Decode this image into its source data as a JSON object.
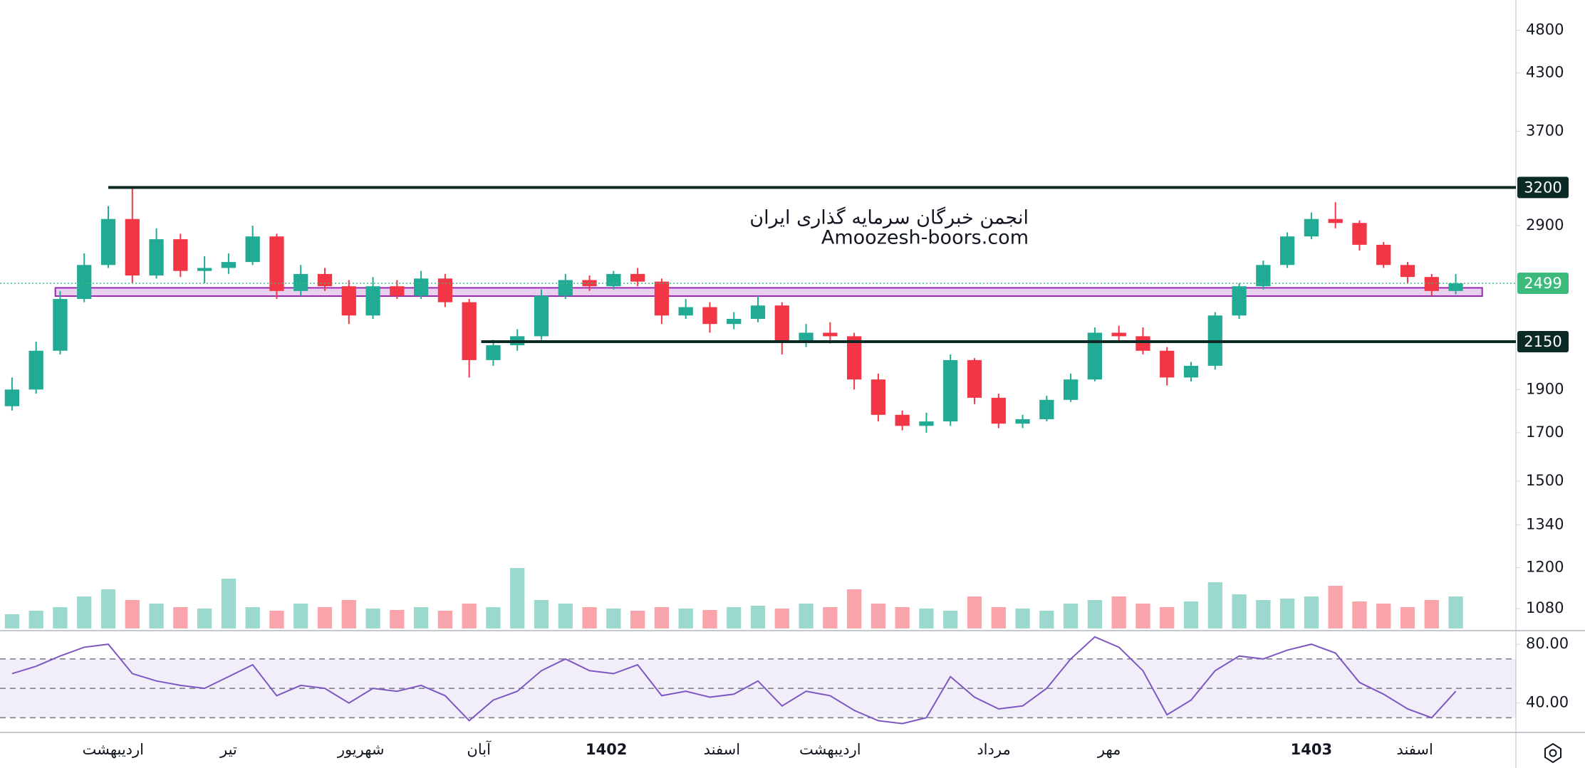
{
  "chart_data": [
    {
      "type": "candlestick",
      "title": "انجمن خبرگان سرمایه گذاری ایران",
      "subtitle": "Amoozesh-boors.com",
      "log_scale": true,
      "xlim": [
        -0.5,
        62.5
      ],
      "xticks": [
        {
          "value": 4.2,
          "label": "اردیبهشت"
        },
        {
          "value": 9,
          "label": "تیر"
        },
        {
          "value": 14.5,
          "label": "شهریور"
        },
        {
          "value": 19.4,
          "label": "آبان"
        },
        {
          "value": 24.7,
          "label": "1402"
        },
        {
          "value": 29.5,
          "label": "اسفند"
        },
        {
          "value": 34,
          "label": "اردیبهشت"
        },
        {
          "value": 40.8,
          "label": "مرداد"
        },
        {
          "value": 45.6,
          "label": "مهر"
        },
        {
          "value": 54,
          "label": "1403"
        },
        {
          "value": 58.3,
          "label": "اسفند"
        }
      ],
      "ylim": [
        1022,
        5190
      ],
      "yticks": [
        4800,
        4300,
        3700,
        2900,
        1900,
        1700,
        1500,
        1340,
        1200,
        1080
      ],
      "up_color": "#22ab94",
      "down_color": "#f23645",
      "open": [
        1820,
        1900,
        2100,
        2400,
        2620,
        2950,
        2550,
        2800,
        2580,
        2600,
        2640,
        2820,
        2450,
        2560,
        2480,
        2300,
        2480,
        2420,
        2530,
        2380,
        2050,
        2130,
        2180,
        2420,
        2520,
        2480,
        2560,
        2510,
        2300,
        2350,
        2250,
        2280,
        2360,
        2150,
        2200,
        2180,
        1950,
        1780,
        1730,
        1750,
        2050,
        1860,
        1740,
        1760,
        1850,
        1950,
        2200,
        2180,
        2100,
        1960,
        2020,
        2300,
        2480,
        2620,
        2820,
        2950,
        2920,
        2760,
        2620,
        2540,
        2450
      ],
      "high": [
        1960,
        2150,
        2450,
        2700,
        3050,
        3210,
        2880,
        2840,
        2680,
        2700,
        2900,
        2840,
        2620,
        2600,
        2520,
        2540,
        2520,
        2580,
        2560,
        2400,
        2160,
        2220,
        2460,
        2560,
        2550,
        2580,
        2600,
        2530,
        2400,
        2380,
        2320,
        2420,
        2380,
        2250,
        2260,
        2200,
        1980,
        1800,
        1790,
        2080,
        2060,
        1880,
        1780,
        1870,
        1980,
        2230,
        2240,
        2230,
        2120,
        2040,
        2320,
        2500,
        2650,
        2850,
        3000,
        3080,
        2940,
        2780,
        2640,
        2560,
        2560
      ],
      "low": [
        1800,
        1880,
        2080,
        2380,
        2600,
        2500,
        2530,
        2540,
        2500,
        2560,
        2620,
        2400,
        2420,
        2450,
        2250,
        2280,
        2400,
        2400,
        2350,
        1960,
        2020,
        2100,
        2160,
        2400,
        2450,
        2460,
        2480,
        2250,
        2280,
        2200,
        2220,
        2260,
        2080,
        2120,
        2140,
        1900,
        1750,
        1710,
        1700,
        1730,
        1830,
        1720,
        1720,
        1750,
        1840,
        1940,
        2150,
        2080,
        1920,
        1940,
        2000,
        2280,
        2460,
        2600,
        2800,
        2880,
        2720,
        2600,
        2500,
        2420,
        2430
      ],
      "close": [
        1900,
        2100,
        2400,
        2620,
        2950,
        2550,
        2800,
        2580,
        2600,
        2640,
        2820,
        2450,
        2560,
        2480,
        2300,
        2480,
        2420,
        2530,
        2380,
        2050,
        2130,
        2180,
        2420,
        2520,
        2480,
        2560,
        2510,
        2300,
        2350,
        2250,
        2280,
        2360,
        2150,
        2200,
        2180,
        1950,
        1780,
        1730,
        1750,
        2050,
        1860,
        1740,
        1760,
        1850,
        1950,
        2200,
        2180,
        2100,
        1960,
        2020,
        2300,
        2480,
        2620,
        2820,
        2950,
        2920,
        2760,
        2620,
        2540,
        2450,
        2499
      ],
      "volume": [
        20,
        25,
        30,
        45,
        55,
        40,
        35,
        30,
        28,
        70,
        30,
        25,
        35,
        30,
        40,
        28,
        26,
        30,
        25,
        35,
        30,
        85,
        40,
        35,
        30,
        28,
        25,
        30,
        28,
        26,
        30,
        32,
        28,
        35,
        30,
        55,
        35,
        30,
        28,
        25,
        45,
        30,
        28,
        25,
        35,
        40,
        45,
        35,
        30,
        38,
        65,
        48,
        40,
        42,
        45,
        60,
        38,
        35,
        30,
        40,
        45
      ],
      "levels": [
        {
          "value": 3200,
          "x_start": 4,
          "color": "#0b2a26"
        },
        {
          "value": 2150,
          "x_start": 19.5,
          "color": "#0b2a26"
        }
      ],
      "zone": {
        "range": [
          2418,
          2470
        ],
        "x_range": [
          1.8,
          61.1
        ],
        "color": "#9c27b0"
      },
      "last_color": "#3cba7c"
    },
    {
      "type": "line",
      "color": "#7e57c2",
      "ylim": [
        20,
        88.3
      ],
      "yticks": [
        {
          "value": 80,
          "label": "80.00"
        },
        {
          "value": 40,
          "label": "40.00"
        }
      ],
      "levels": [
        30,
        50,
        70
      ],
      "values": [
        60,
        65,
        72,
        78,
        80,
        60,
        55,
        52,
        50,
        58,
        66,
        45,
        52,
        50,
        40,
        50,
        48,
        52,
        45,
        28,
        42,
        48,
        62,
        70,
        62,
        60,
        66,
        45,
        48,
        44,
        46,
        55,
        38,
        48,
        45,
        35,
        28,
        26,
        30,
        58,
        44,
        36,
        38,
        50,
        70,
        85,
        78,
        62,
        32,
        42,
        62,
        72,
        70,
        76,
        80,
        74,
        54,
        46,
        36,
        30,
        48
      ]
    }
  ]
}
